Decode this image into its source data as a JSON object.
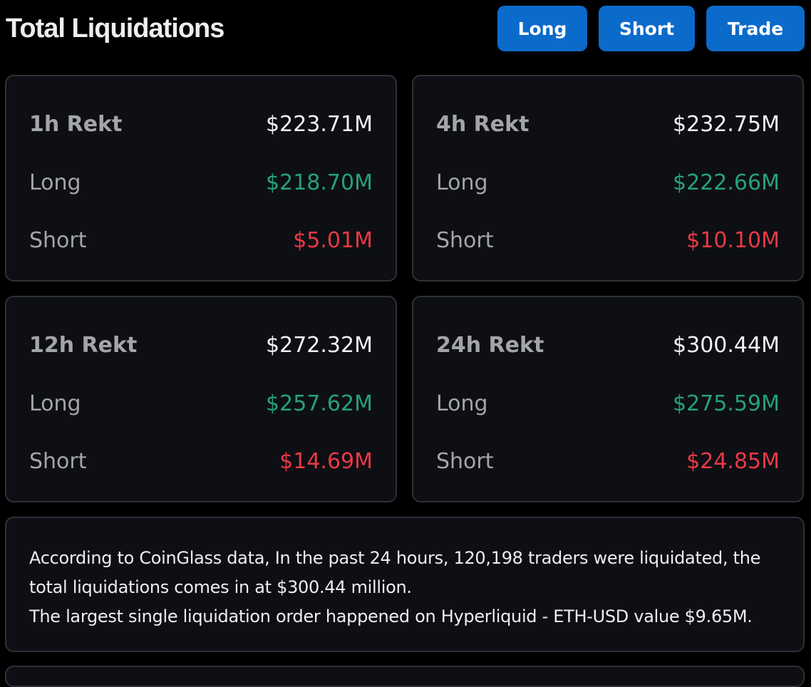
{
  "header": {
    "title": "Total Liquidations",
    "buttons": {
      "long": "Long",
      "short": "Short",
      "trade": "Trade"
    }
  },
  "cards": [
    {
      "period_label": "1h Rekt",
      "total": "$223.71M",
      "long_label": "Long",
      "long_value": "$218.70M",
      "short_label": "Short",
      "short_value": "$5.01M"
    },
    {
      "period_label": "4h Rekt",
      "total": "$232.75M",
      "long_label": "Long",
      "long_value": "$222.66M",
      "short_label": "Short",
      "short_value": "$10.10M"
    },
    {
      "period_label": "12h Rekt",
      "total": "$272.32M",
      "long_label": "Long",
      "long_value": "$257.62M",
      "short_label": "Short",
      "short_value": "$14.69M"
    },
    {
      "period_label": "24h Rekt",
      "total": "$300.44M",
      "long_label": "Long",
      "long_value": "$275.59M",
      "short_label": "Short",
      "short_value": "$24.85M"
    }
  ],
  "summary": {
    "line1": "According to CoinGlass data, In the past 24 hours, 120,198 traders were liquidated, the total liquidations comes in at $300.44 million.",
    "line2": "The largest single liquidation order happened on Hyperliquid - ETH-USD value $9.65M."
  },
  "colors": {
    "background": "#000000",
    "card": "#0d0f14",
    "border": "#2e3037",
    "button": "#0b6bcb",
    "long": "#26a17b",
    "short": "#ea3943"
  }
}
